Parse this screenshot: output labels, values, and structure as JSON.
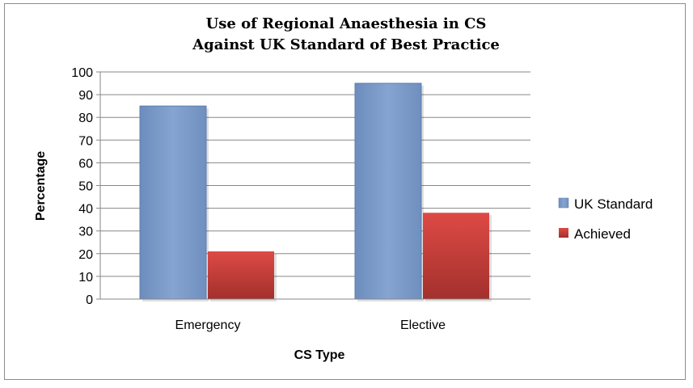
{
  "chart_data": {
    "type": "bar",
    "title": [
      "Use of Regional Anaesthesia in CS",
      "Against UK Standard of Best Practice"
    ],
    "xlabel": "CS Type",
    "ylabel": "Percentage",
    "categories": [
      "Emergency",
      "Elective"
    ],
    "series": [
      {
        "name": "UK Standard",
        "values": [
          85,
          95
        ],
        "color": "#7b9bc9"
      },
      {
        "name": "Achieved",
        "values": [
          21,
          38
        ],
        "color": "#c23b37"
      }
    ],
    "ylim": [
      0,
      100
    ],
    "yticks": [
      0,
      10,
      20,
      30,
      40,
      50,
      60,
      70,
      80,
      90,
      100
    ],
    "grid": true,
    "legend": "right"
  }
}
